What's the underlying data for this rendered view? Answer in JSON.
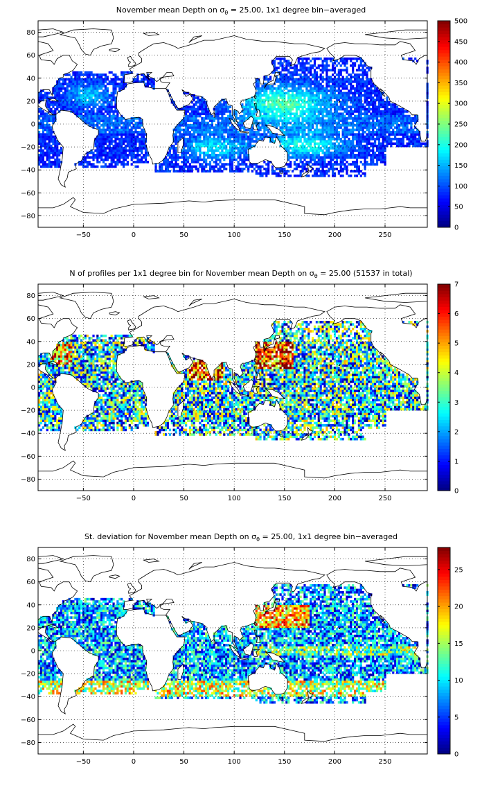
{
  "chart_data": [
    {
      "type": "heatmap",
      "title": "November mean Depth on σθ = 25.00, 1x1 degree bin−averaged",
      "title_main": "November mean Depth on σ",
      "title_sub": "θ",
      "title_rest": " = 25.00, 1x1 degree bin−averaged",
      "xlabel": "",
      "ylabel": "",
      "xlim": [
        -95,
        292
      ],
      "ylim": [
        -90,
        90
      ],
      "x_ticks": [
        -50,
        0,
        50,
        100,
        150,
        200,
        250
      ],
      "y_ticks": [
        80,
        60,
        40,
        20,
        0,
        -20,
        -40,
        -60,
        -80
      ],
      "grid": true,
      "colorbar": {
        "min": 0,
        "max": 500,
        "ticks": [
          0,
          50,
          100,
          150,
          200,
          250,
          300,
          350,
          400,
          450,
          500
        ],
        "colormap": "jet"
      },
      "field": "depth"
    },
    {
      "type": "heatmap",
      "title": "N of profiles per 1x1 degree bin for November mean Depth on σθ = 25.00 (51537 in total)",
      "title_main": "N of profiles per 1x1 degree bin for November mean Depth on σ",
      "title_sub": "θ",
      "title_rest": " = 25.00 (51537 in total)",
      "xlabel": "",
      "ylabel": "",
      "xlim": [
        -95,
        292
      ],
      "ylim": [
        -90,
        90
      ],
      "x_ticks": [
        -50,
        0,
        50,
        100,
        150,
        200,
        250
      ],
      "y_ticks": [
        80,
        60,
        40,
        20,
        0,
        -20,
        -40,
        -60,
        -80
      ],
      "grid": true,
      "colorbar": {
        "min": 0,
        "max": 7,
        "ticks": [
          0,
          1,
          2,
          3,
          4,
          5,
          6,
          7
        ],
        "colormap": "jet"
      },
      "field": "count"
    },
    {
      "type": "heatmap",
      "title": "St. deviation for November mean Depth on σθ = 25.00, 1x1 degree bin−averaged",
      "title_main": "St. deviation for November mean Depth on σ",
      "title_sub": "θ",
      "title_rest": " = 25.00, 1x1 degree bin−averaged",
      "xlabel": "",
      "ylabel": "",
      "xlim": [
        -95,
        292
      ],
      "ylim": [
        -90,
        90
      ],
      "x_ticks": [
        -50,
        0,
        50,
        100,
        150,
        200,
        250
      ],
      "y_ticks": [
        80,
        60,
        40,
        20,
        0,
        -20,
        -40,
        -60,
        -80
      ],
      "grid": true,
      "colorbar": {
        "min": 0,
        "max": 28,
        "ticks": [
          0,
          5,
          10,
          15,
          20,
          25
        ],
        "colormap": "jet"
      },
      "field": "std"
    }
  ]
}
